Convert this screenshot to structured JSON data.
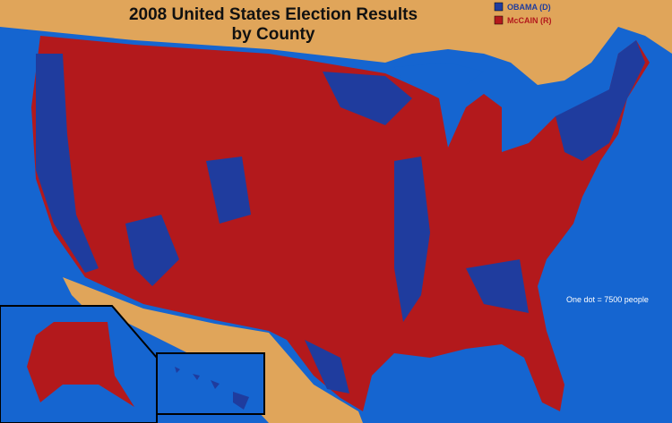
{
  "title": [
    "2008 United States Election Results",
    "by County"
  ],
  "legend": [
    {
      "label": "OBAMA (D)",
      "color": "#1f3c9e"
    },
    {
      "label": "McCAIN (R)",
      "color": "#b3191c"
    }
  ],
  "note": "One dot = 7500 people"
}
